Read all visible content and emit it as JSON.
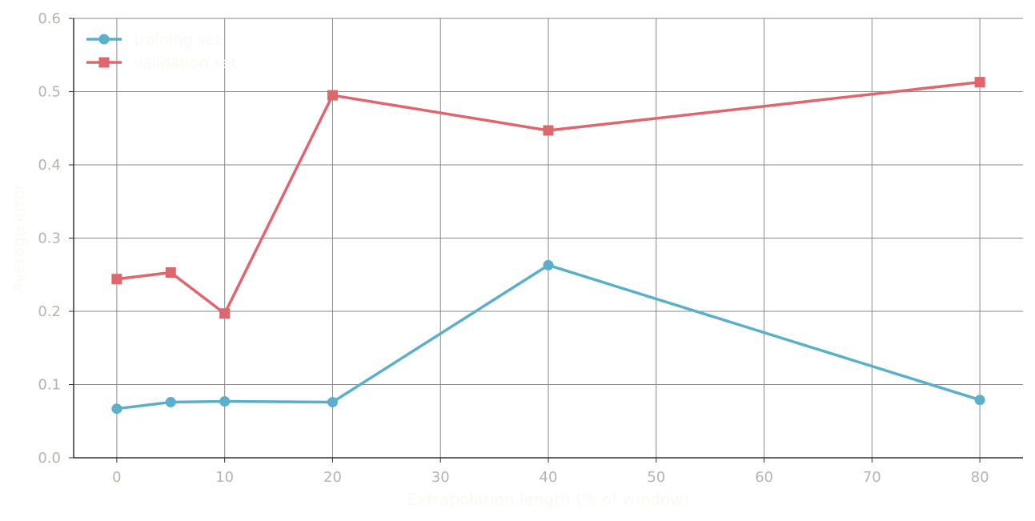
{
  "chart_data": {
    "type": "line",
    "xlabel": "Extrapolation length (% of window)",
    "ylabel": "Average error",
    "xlim": [
      -4,
      84
    ],
    "ylim": [
      0,
      0.6
    ],
    "xticks": [
      0,
      10,
      20,
      30,
      40,
      50,
      60,
      70,
      80
    ],
    "yticks": [
      0.0,
      0.1,
      0.2,
      0.3,
      0.4,
      0.5,
      0.6
    ],
    "xtick_labels": [
      "0",
      "10",
      "20",
      "30",
      "40",
      "50",
      "60",
      "70",
      "80"
    ],
    "ytick_labels": [
      "0.0",
      "0.1",
      "0.2",
      "0.3",
      "0.4",
      "0.5",
      "0.6"
    ],
    "grid": true,
    "legend_position": "top-left",
    "x": [
      0,
      5,
      10,
      20,
      40,
      80
    ],
    "series": [
      {
        "name": "training set",
        "marker": "circle",
        "color": "#5ab0cc",
        "values": [
          0.067,
          0.076,
          0.077,
          0.076,
          0.263,
          0.079
        ]
      },
      {
        "name": "validation set",
        "marker": "square",
        "color": "#e0666e",
        "values": [
          0.244,
          0.253,
          0.197,
          0.495,
          0.447,
          0.513
        ]
      }
    ],
    "colors": {
      "grid": "#8a8a8a",
      "axis": "#333333",
      "tick_label": "#b8b4aa",
      "axis_title": "#fbf9f1",
      "legend_text": "#fbf9f1"
    }
  }
}
